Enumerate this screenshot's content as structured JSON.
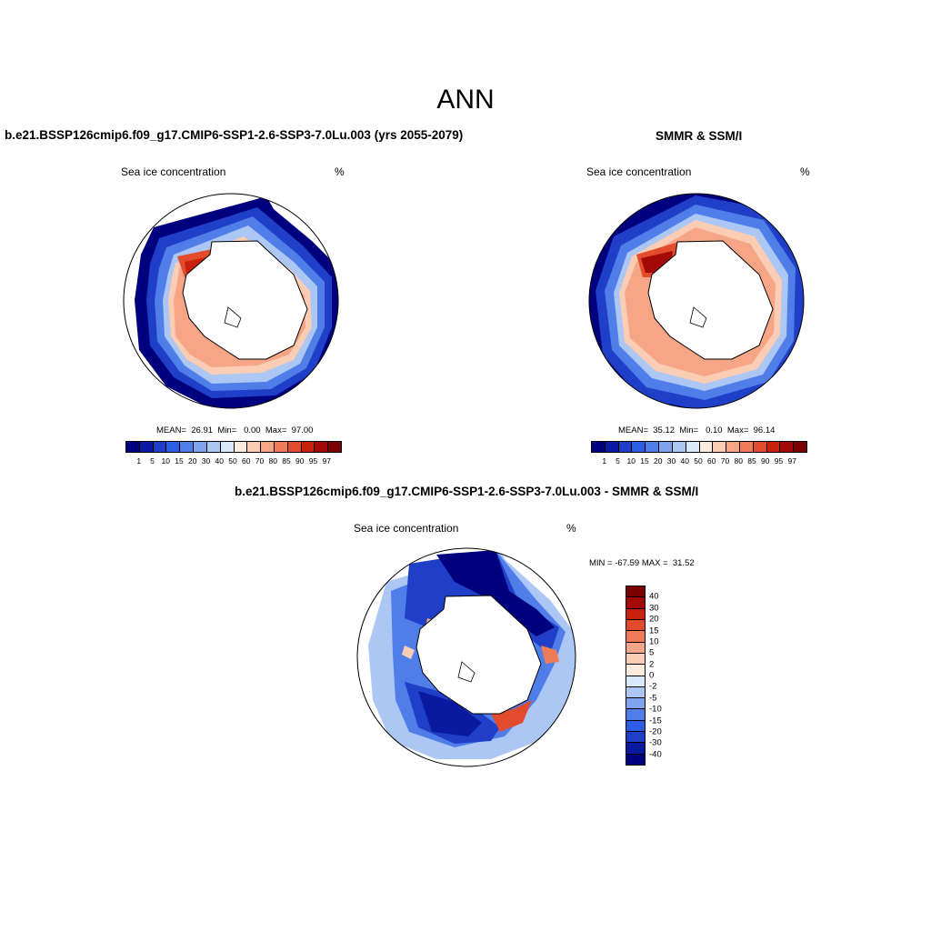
{
  "figure": {
    "title": "ANN",
    "left_title": "b.e21.BSSP126cmip6.f09_g17.CMIP6-SSP1-2.6-SSP3-7.0Lu.003 (yrs 2055-2079)",
    "right_title": "SMMR & SSM/I",
    "bottom_title": "b.e21.BSSP126cmip6.f09_g17.CMIP6-SSP1-2.6-SSP3-7.0Lu.003 - SMMR & SSM/I"
  },
  "panels": {
    "model": {
      "variable": "Sea ice concentration",
      "units": "%",
      "stats": "MEAN=  26.91  Min=   0.00  Max=  97.00"
    },
    "obs": {
      "variable": "Sea ice concentration",
      "units": "%",
      "stats": "MEAN=  35.12  Min=   0.10  Max=  96.14"
    },
    "diff": {
      "variable": "Sea ice concentration",
      "units": "%",
      "stats": "MIN = -67.59 MAX =  31.52"
    }
  },
  "colorbar_abs": {
    "ticks": [
      "1",
      "5",
      "10",
      "15",
      "20",
      "30",
      "40",
      "50",
      "60",
      "70",
      "80",
      "85",
      "90",
      "95",
      "97"
    ],
    "colors": [
      "#00007f",
      "#0a1aa0",
      "#1f3fc8",
      "#2c5de6",
      "#4f7ee9",
      "#7fa4ef",
      "#adc7f4",
      "#d9e8fa",
      "#fdebdd",
      "#fbcdb4",
      "#f6a686",
      "#f07b58",
      "#e24b2c",
      "#c8220f",
      "#a30a06",
      "#7b0000"
    ]
  },
  "colorbar_diff": {
    "ticks": [
      "40",
      "30",
      "20",
      "15",
      "10",
      "5",
      "2",
      "0",
      "-2",
      "-5",
      "-10",
      "-15",
      "-20",
      "-30",
      "-40"
    ],
    "colors": [
      "#7b0000",
      "#a30a06",
      "#c8220f",
      "#e24b2c",
      "#f07b58",
      "#f6a686",
      "#fbcdb4",
      "#fdebdd",
      "#d9e8fa",
      "#adc7f4",
      "#7fa4ef",
      "#4f7ee9",
      "#2c5de6",
      "#1f3fc8",
      "#0a1aa0",
      "#00007f"
    ]
  }
}
